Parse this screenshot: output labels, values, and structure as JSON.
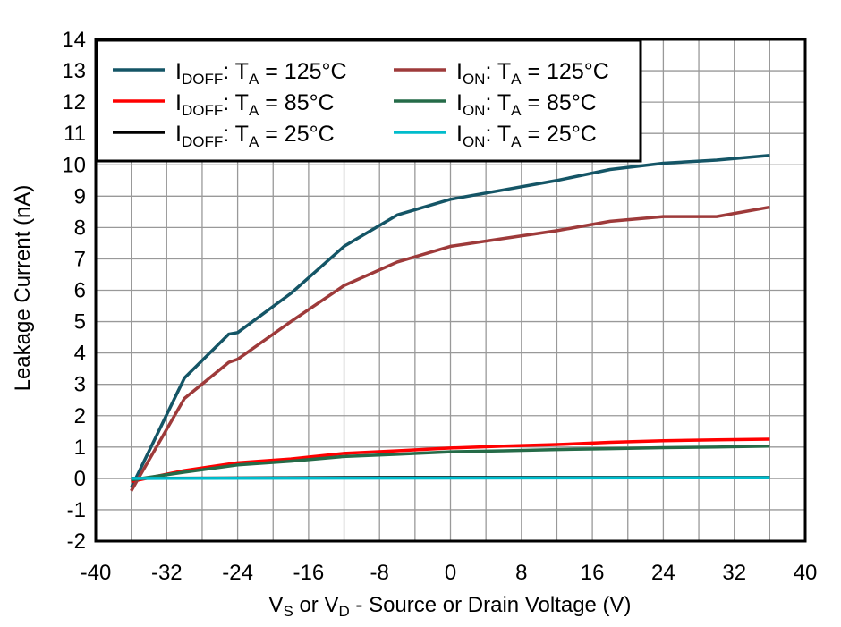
{
  "chart_data": {
    "type": "line",
    "xlabel": {
      "main1": "V",
      "sub1": "S",
      "mid": " or V",
      "sub2": "D",
      "rest": " - Source or Drain Voltage (V)"
    },
    "ylabel": "Leakage Current (nA)",
    "xlim": [
      -40,
      40
    ],
    "ylim": [
      -2,
      14
    ],
    "xticks": [
      -40,
      -32,
      -24,
      -16,
      -8,
      0,
      8,
      16,
      24,
      32,
      40
    ],
    "yticks": [
      -2,
      -1,
      0,
      1,
      2,
      3,
      4,
      5,
      6,
      7,
      8,
      9,
      10,
      11,
      12,
      13,
      14
    ],
    "x_grid_step": 4,
    "y_grid_step": 1,
    "grid": true,
    "legend_placement": "top-left",
    "series": [
      {
        "name": "IDOFF: TA = 125°C",
        "label_main": "I",
        "label_sub": "DOFF",
        "label_rest": ": T",
        "label_sub2": "A",
        "label_end": " = 125°C",
        "color": "#145566",
        "x": [
          -36,
          -30,
          -25,
          -24,
          -18,
          -12,
          -6,
          0,
          6,
          12,
          18,
          24,
          30,
          36
        ],
        "y": [
          -0.3,
          3.2,
          4.6,
          4.65,
          5.9,
          7.4,
          8.4,
          8.9,
          9.2,
          9.5,
          9.85,
          10.05,
          10.15,
          10.3
        ]
      },
      {
        "name": "IDOFF: TA = 85°C",
        "label_main": "I",
        "label_sub": "DOFF",
        "label_rest": ": T",
        "label_sub2": "A",
        "label_end": " = 85°C",
        "color": "#ff0000",
        "x": [
          -36,
          -30,
          -24,
          -18,
          -12,
          -6,
          0,
          6,
          12,
          18,
          24,
          30,
          36
        ],
        "y": [
          -0.1,
          0.25,
          0.5,
          0.62,
          0.8,
          0.88,
          0.97,
          1.03,
          1.08,
          1.15,
          1.2,
          1.23,
          1.25
        ]
      },
      {
        "name": "IDOFF: TA = 25°C",
        "label_main": "I",
        "label_sub": "DOFF",
        "label_rest": ": T",
        "label_sub2": "A",
        "label_end": " = 25°C",
        "color": "#000000",
        "x": [
          -36,
          -6,
          12,
          36
        ],
        "y": [
          0,
          0.03,
          0.03,
          0.03
        ]
      },
      {
        "name": "ION: TA = 125°C",
        "label_main": "I",
        "label_sub": "ON",
        "label_rest": ": T",
        "label_sub2": "A",
        "label_end": " = 125°C",
        "color": "#9e3a3a",
        "x": [
          -36,
          -30,
          -25,
          -24,
          -18,
          -12,
          -6,
          0,
          6,
          12,
          18,
          24,
          30,
          36
        ],
        "y": [
          -0.4,
          2.55,
          3.7,
          3.8,
          5.0,
          6.15,
          6.9,
          7.4,
          7.65,
          7.9,
          8.2,
          8.35,
          8.35,
          8.65
        ]
      },
      {
        "name": "ION: TA = 85°C",
        "label_main": "I",
        "label_sub": "ON",
        "label_rest": ": T",
        "label_sub2": "A",
        "label_end": " = 85°C",
        "color": "#256b48",
        "x": [
          -36,
          -30,
          -24,
          -18,
          -12,
          -6,
          0,
          6,
          12,
          18,
          24,
          30,
          36
        ],
        "y": [
          -0.05,
          0.2,
          0.43,
          0.55,
          0.7,
          0.77,
          0.85,
          0.88,
          0.92,
          0.95,
          0.98,
          1.0,
          1.03
        ]
      },
      {
        "name": "ION: TA = 25°C",
        "label_main": "I",
        "label_sub": "ON",
        "label_rest": ": T",
        "label_sub2": "A",
        "label_end": " = 25°C",
        "color": "#00bccc",
        "x": [
          -36,
          36
        ],
        "y": [
          0,
          0.02
        ]
      }
    ]
  }
}
